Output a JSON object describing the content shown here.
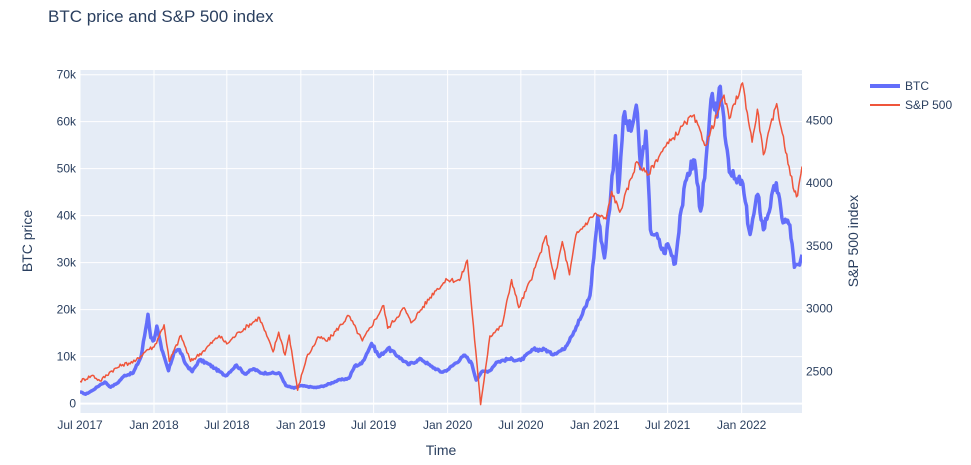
{
  "chart_data": {
    "type": "line",
    "title": "BTC price and S&P 500 index",
    "xlabel": "Time",
    "ylabel": "BTC price",
    "y2label": "S&P 500 index",
    "x_range": [
      "2017-07-01",
      "2022-05-31"
    ],
    "x_ticks": [
      {
        "date": "2017-07-01",
        "label": "Jul 2017"
      },
      {
        "date": "2018-01-01",
        "label": "Jan 2018"
      },
      {
        "date": "2018-07-01",
        "label": "Jul 2018"
      },
      {
        "date": "2019-01-01",
        "label": "Jan 2019"
      },
      {
        "date": "2019-07-01",
        "label": "Jul 2019"
      },
      {
        "date": "2020-01-01",
        "label": "Jan 2020"
      },
      {
        "date": "2020-07-01",
        "label": "Jul 2020"
      },
      {
        "date": "2021-01-01",
        "label": "Jan 2021"
      },
      {
        "date": "2021-07-01",
        "label": "Jul 2021"
      },
      {
        "date": "2022-01-01",
        "label": "Jan 2022"
      }
    ],
    "y_range": [
      -2000,
      71000
    ],
    "y_ticks": [
      {
        "value": 0,
        "label": "0"
      },
      {
        "value": 10000,
        "label": "10k"
      },
      {
        "value": 20000,
        "label": "20k"
      },
      {
        "value": 30000,
        "label": "30k"
      },
      {
        "value": 40000,
        "label": "40k"
      },
      {
        "value": 50000,
        "label": "50k"
      },
      {
        "value": 60000,
        "label": "60k"
      },
      {
        "value": 70000,
        "label": "70k"
      }
    ],
    "y2_range": [
      2170,
      4900
    ],
    "y2_ticks": [
      {
        "value": 2500,
        "label": "2500"
      },
      {
        "value": 3000,
        "label": "3000"
      },
      {
        "value": 3500,
        "label": "3500"
      },
      {
        "value": 4000,
        "label": "4000"
      },
      {
        "value": 4500,
        "label": "4500"
      }
    ],
    "legend_position": "top-right, outside plot",
    "series": [
      {
        "name": "BTC",
        "axis": "y",
        "color": "#636efa",
        "points": [
          [
            "2017-07-01",
            2500
          ],
          [
            "2017-07-15",
            2000
          ],
          [
            "2017-08-01",
            2800
          ],
          [
            "2017-08-20",
            4000
          ],
          [
            "2017-09-01",
            4600
          ],
          [
            "2017-09-15",
            3500
          ],
          [
            "2017-10-01",
            4300
          ],
          [
            "2017-10-20",
            6000
          ],
          [
            "2017-11-10",
            6500
          ],
          [
            "2017-11-30",
            10000
          ],
          [
            "2017-12-17",
            19000
          ],
          [
            "2017-12-24",
            14000
          ],
          [
            "2018-01-01",
            13500
          ],
          [
            "2018-01-08",
            16500
          ],
          [
            "2018-01-20",
            11500
          ],
          [
            "2018-02-06",
            7000
          ],
          [
            "2018-02-20",
            11000
          ],
          [
            "2018-03-05",
            11500
          ],
          [
            "2018-03-20",
            8500
          ],
          [
            "2018-04-06",
            6800
          ],
          [
            "2018-04-24",
            9300
          ],
          [
            "2018-05-15",
            8500
          ],
          [
            "2018-06-01",
            7500
          ],
          [
            "2018-06-28",
            5900
          ],
          [
            "2018-07-25",
            8200
          ],
          [
            "2018-08-15",
            6300
          ],
          [
            "2018-09-05",
            7400
          ],
          [
            "2018-09-25",
            6500
          ],
          [
            "2018-10-20",
            6500
          ],
          [
            "2018-11-10",
            6400
          ],
          [
            "2018-11-25",
            3800
          ],
          [
            "2018-12-15",
            3300
          ],
          [
            "2019-01-01",
            3800
          ],
          [
            "2019-02-08",
            3400
          ],
          [
            "2019-03-01",
            3800
          ],
          [
            "2019-04-02",
            4900
          ],
          [
            "2019-05-01",
            5400
          ],
          [
            "2019-05-15",
            8000
          ],
          [
            "2019-06-01",
            8500
          ],
          [
            "2019-06-26",
            12800
          ],
          [
            "2019-07-15",
            10000
          ],
          [
            "2019-08-06",
            11800
          ],
          [
            "2019-09-01",
            10000
          ],
          [
            "2019-09-25",
            8300
          ],
          [
            "2019-10-27",
            9500
          ],
          [
            "2019-11-20",
            8000
          ],
          [
            "2019-12-17",
            6700
          ],
          [
            "2020-01-01",
            7200
          ],
          [
            "2020-02-13",
            10300
          ],
          [
            "2020-03-01",
            8500
          ],
          [
            "2020-03-12",
            5000
          ],
          [
            "2020-03-25",
            6700
          ],
          [
            "2020-04-15",
            7000
          ],
          [
            "2020-05-01",
            8800
          ],
          [
            "2020-06-01",
            9500
          ],
          [
            "2020-07-01",
            9200
          ],
          [
            "2020-08-01",
            11500
          ],
          [
            "2020-09-01",
            11500
          ],
          [
            "2020-09-15",
            10500
          ],
          [
            "2020-10-15",
            11500
          ],
          [
            "2020-11-01",
            14000
          ],
          [
            "2020-12-01",
            19000
          ],
          [
            "2020-12-20",
            23000
          ],
          [
            "2021-01-08",
            40000
          ],
          [
            "2021-01-25",
            31000
          ],
          [
            "2021-02-10",
            45000
          ],
          [
            "2021-02-21",
            57000
          ],
          [
            "2021-02-28",
            45000
          ],
          [
            "2021-03-13",
            61000
          ],
          [
            "2021-04-01",
            58000
          ],
          [
            "2021-04-14",
            63500
          ],
          [
            "2021-04-25",
            50000
          ],
          [
            "2021-05-08",
            58000
          ],
          [
            "2021-05-19",
            37000
          ],
          [
            "2021-06-01",
            36000
          ],
          [
            "2021-06-22",
            32000
          ],
          [
            "2021-07-01",
            34000
          ],
          [
            "2021-07-20",
            29800
          ],
          [
            "2021-08-01",
            40000
          ],
          [
            "2021-08-20",
            49000
          ],
          [
            "2021-09-06",
            51800
          ],
          [
            "2021-09-21",
            41000
          ],
          [
            "2021-10-01",
            48000
          ],
          [
            "2021-10-20",
            66000
          ],
          [
            "2021-11-01",
            61000
          ],
          [
            "2021-11-09",
            67500
          ],
          [
            "2021-11-26",
            54000
          ],
          [
            "2021-12-04",
            49000
          ],
          [
            "2021-12-20",
            47000
          ],
          [
            "2022-01-01",
            47500
          ],
          [
            "2022-01-22",
            36000
          ],
          [
            "2022-02-10",
            44500
          ],
          [
            "2022-02-24",
            37000
          ],
          [
            "2022-03-28",
            47000
          ],
          [
            "2022-04-11",
            39500
          ],
          [
            "2022-05-01",
            38000
          ],
          [
            "2022-05-12",
            29000
          ],
          [
            "2022-05-25",
            29500
          ],
          [
            "2022-05-31",
            31700
          ]
        ]
      },
      {
        "name": "S&P 500",
        "axis": "y2",
        "color": "#ef553b",
        "points": [
          [
            "2017-07-01",
            2423
          ],
          [
            "2017-08-01",
            2470
          ],
          [
            "2017-08-20",
            2425
          ],
          [
            "2017-09-15",
            2500
          ],
          [
            "2017-10-15",
            2555
          ],
          [
            "2017-11-15",
            2580
          ],
          [
            "2017-12-15",
            2675
          ],
          [
            "2018-01-01",
            2695
          ],
          [
            "2018-01-26",
            2872
          ],
          [
            "2018-02-08",
            2581
          ],
          [
            "2018-03-09",
            2786
          ],
          [
            "2018-04-02",
            2581
          ],
          [
            "2018-05-01",
            2655
          ],
          [
            "2018-06-12",
            2786
          ],
          [
            "2018-07-01",
            2720
          ],
          [
            "2018-08-01",
            2815
          ],
          [
            "2018-09-20",
            2930
          ],
          [
            "2018-10-24",
            2656
          ],
          [
            "2018-11-07",
            2813
          ],
          [
            "2018-11-23",
            2632
          ],
          [
            "2018-12-03",
            2790
          ],
          [
            "2018-12-24",
            2351
          ],
          [
            "2019-01-15",
            2610
          ],
          [
            "2019-02-15",
            2775
          ],
          [
            "2019-03-08",
            2743
          ],
          [
            "2019-04-30",
            2945
          ],
          [
            "2019-06-03",
            2744
          ],
          [
            "2019-07-26",
            3025
          ],
          [
            "2019-08-05",
            2844
          ],
          [
            "2019-09-15",
            3007
          ],
          [
            "2019-10-02",
            2888
          ],
          [
            "2019-11-30",
            3140
          ],
          [
            "2019-12-31",
            3230
          ],
          [
            "2020-01-31",
            3225
          ],
          [
            "2020-02-19",
            3386
          ],
          [
            "2020-03-23",
            2237
          ],
          [
            "2020-04-15",
            2783
          ],
          [
            "2020-05-15",
            2863
          ],
          [
            "2020-06-08",
            3232
          ],
          [
            "2020-06-26",
            3009
          ],
          [
            "2020-07-31",
            3271
          ],
          [
            "2020-09-02",
            3580
          ],
          [
            "2020-09-23",
            3236
          ],
          [
            "2020-10-12",
            3534
          ],
          [
            "2020-10-30",
            3270
          ],
          [
            "2020-11-15",
            3585
          ],
          [
            "2020-12-31",
            3756
          ],
          [
            "2021-01-29",
            3714
          ],
          [
            "2021-02-12",
            3934
          ],
          [
            "2021-03-04",
            3768
          ],
          [
            "2021-04-15",
            4170
          ],
          [
            "2021-05-12",
            4063
          ],
          [
            "2021-06-15",
            4246
          ],
          [
            "2021-07-15",
            4360
          ],
          [
            "2021-08-15",
            4480
          ],
          [
            "2021-09-02",
            4537
          ],
          [
            "2021-10-04",
            4300
          ],
          [
            "2021-11-18",
            4700
          ],
          [
            "2021-12-01",
            4513
          ],
          [
            "2022-01-03",
            4797
          ],
          [
            "2022-01-27",
            4326
          ],
          [
            "2022-02-09",
            4587
          ],
          [
            "2022-02-24",
            4226
          ],
          [
            "2022-03-29",
            4632
          ],
          [
            "2022-04-12",
            4397
          ],
          [
            "2022-04-29",
            4132
          ],
          [
            "2022-05-12",
            3930
          ],
          [
            "2022-05-20",
            3901
          ],
          [
            "2022-05-31",
            4132
          ]
        ]
      }
    ]
  }
}
